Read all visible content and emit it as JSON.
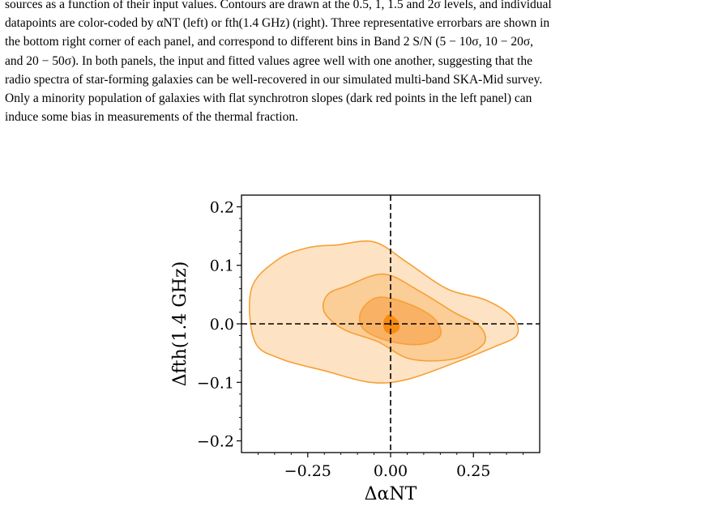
{
  "caption": {
    "lines": [
      "sources as a function of their input values. Contours are drawn at the 0.5, 1, 1.5 and 2σ levels, and individual",
      "datapoints are color-coded by αNT (left) or fth(1.4 GHz) (right). Three representative errorbars are shown in",
      "the bottom right corner of each panel, and correspond to different bins in Band 2 S/N (5 − 10σ, 10 − 20σ,",
      "and 20 − 50σ). In both panels, the input and fitted values agree well with one another, suggesting that the",
      "radio spectra of star-forming galaxies can be well-recovered in our simulated multi-band SKA-Mid survey.",
      "Only a minority population of galaxies with flat synchrotron slopes (dark red points in the left panel) can",
      "induce some bias in measurements of the thermal fraction."
    ]
  },
  "chart_data": {
    "type": "contour",
    "xlabel": "ΔαNT",
    "ylabel": "Δfth(1.4 GHz)",
    "xlim": [
      -0.45,
      0.45
    ],
    "ylim": [
      -0.22,
      0.22
    ],
    "xticks": [
      -0.25,
      0.0,
      0.25
    ],
    "xtick_labels": [
      "−0.25",
      "0.00",
      "0.25"
    ],
    "yticks": [
      -0.2,
      -0.1,
      0.0,
      0.1,
      0.2
    ],
    "ytick_labels": [
      "−0.2",
      "−0.1",
      "0.0",
      "0.1",
      "0.2"
    ],
    "reference_lines": {
      "x": 0.0,
      "y": 0.0,
      "style": "dashed"
    },
    "contour_levels": [
      "2σ",
      "1.5σ",
      "1σ",
      "0.5σ"
    ],
    "contours": [
      {
        "level": "2σ",
        "fill": "#fde3c4",
        "stroke": "#f7a036",
        "points": [
          [
            -0.16,
            0.135
          ],
          [
            -0.05,
            0.14
          ],
          [
            0.05,
            0.105
          ],
          [
            0.17,
            0.06
          ],
          [
            0.29,
            0.04
          ],
          [
            0.37,
            0.01
          ],
          [
            0.38,
            -0.02
          ],
          [
            0.31,
            -0.04
          ],
          [
            0.2,
            -0.065
          ],
          [
            0.05,
            -0.095
          ],
          [
            -0.06,
            -0.1
          ],
          [
            -0.2,
            -0.08
          ],
          [
            -0.33,
            -0.06
          ],
          [
            -0.41,
            -0.03
          ],
          [
            -0.42,
            0.06
          ],
          [
            -0.34,
            0.11
          ],
          [
            -0.25,
            0.13
          ]
        ]
      },
      {
        "level": "1.5σ",
        "fill": "#fbcd97",
        "stroke": "#f7a036",
        "points": [
          [
            -0.13,
            0.065
          ],
          [
            -0.02,
            0.085
          ],
          [
            0.09,
            0.055
          ],
          [
            0.19,
            0.02
          ],
          [
            0.27,
            -0.005
          ],
          [
            0.28,
            -0.035
          ],
          [
            0.19,
            -0.06
          ],
          [
            0.06,
            -0.06
          ],
          [
            -0.04,
            -0.03
          ],
          [
            -0.14,
            -0.01
          ],
          [
            -0.2,
            0.02
          ],
          [
            -0.19,
            0.05
          ]
        ]
      },
      {
        "level": "1σ",
        "fill": "#f9b265",
        "stroke": "#f7a036",
        "points": [
          [
            -0.04,
            0.045
          ],
          [
            0.05,
            0.035
          ],
          [
            0.13,
            0.01
          ],
          [
            0.15,
            -0.02
          ],
          [
            0.09,
            -0.035
          ],
          [
            0.0,
            -0.03
          ],
          [
            -0.08,
            -0.01
          ],
          [
            -0.09,
            0.02
          ]
        ]
      },
      {
        "level": "0.5σ",
        "fill": "#f78c14",
        "stroke": "#f78c14",
        "points": [
          [
            -0.005,
            0.015
          ],
          [
            0.02,
            0.005
          ],
          [
            0.025,
            -0.008
          ],
          [
            0.005,
            -0.016
          ],
          [
            -0.015,
            -0.012
          ],
          [
            -0.02,
            0.003
          ]
        ]
      }
    ]
  }
}
